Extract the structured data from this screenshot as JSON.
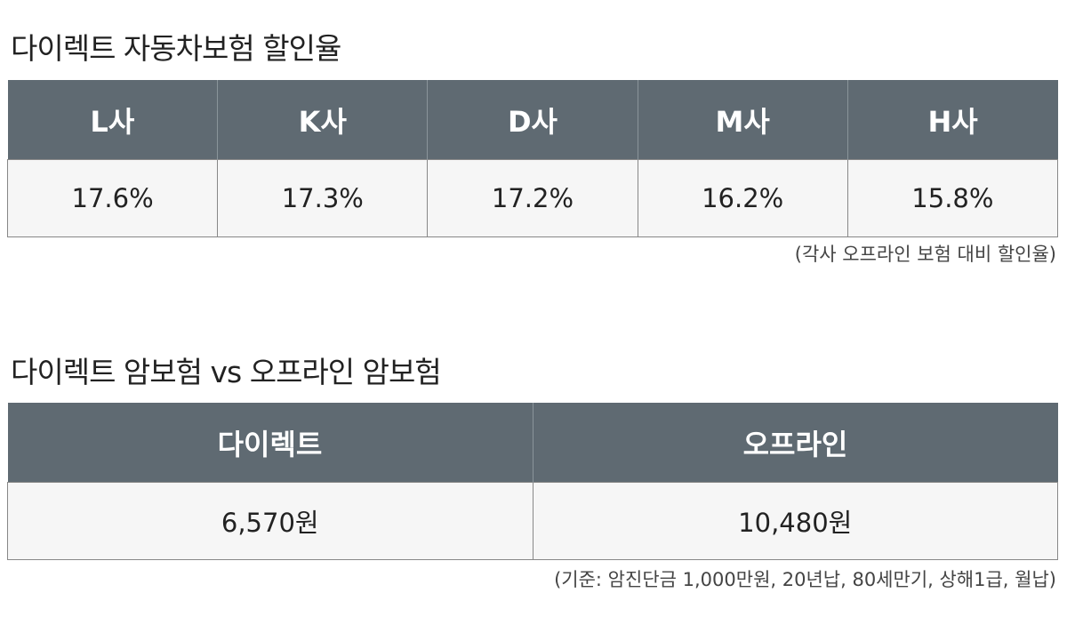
{
  "section1": {
    "title": "다이렉트 자동차보험 할인율",
    "table": {
      "header": [
        "L사",
        "K사",
        "D사",
        "M사",
        "H사"
      ],
      "rows": [
        [
          "17.6%",
          "17.3%",
          "17.2%",
          "16.2%",
          "15.8%"
        ]
      ]
    },
    "note": "(각사 오프라인 보험 대비 할인율)"
  },
  "section2": {
    "title": "다이렉트 암보험 vs 오프라인 암보험",
    "table": {
      "header": [
        "다이렉트",
        "오프라인"
      ],
      "rows": [
        [
          "6,570원",
          "10,480원"
        ]
      ]
    },
    "note": "(기준: 암진단금 1,000만원, 20년납, 80세만기, 상해1급, 월납)"
  }
}
